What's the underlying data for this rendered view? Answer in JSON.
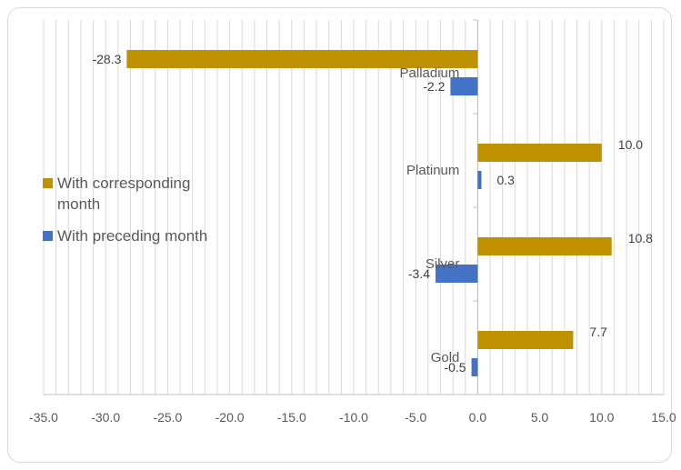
{
  "chart_data": {
    "type": "bar",
    "orientation": "horizontal",
    "title": "",
    "xlabel": "",
    "ylabel": "",
    "categories": [
      "Palladium",
      "Platinum",
      "Silver",
      "Gold"
    ],
    "series": [
      {
        "name": "With corresponding month",
        "color": "#bf9000",
        "values": [
          -28.3,
          10.0,
          10.8,
          7.7
        ],
        "labels": [
          "-28.3",
          "10.0",
          "10.8",
          "7.7"
        ]
      },
      {
        "name": "With preceding month",
        "color": "#4472c4",
        "values": [
          -2.2,
          0.3,
          -3.4,
          -0.5
        ],
        "labels": [
          "-2.2",
          "0.3",
          "-3.4",
          "-0.5"
        ]
      }
    ],
    "xlim": [
      -35,
      15
    ],
    "xticks": [
      "-35.0",
      "-30.0",
      "-25.0",
      "-20.0",
      "-15.0",
      "-10.0",
      "-5.0",
      "0.0",
      "5.0",
      "10.0",
      "15.0"
    ],
    "grid": true,
    "legend_position": "left"
  }
}
